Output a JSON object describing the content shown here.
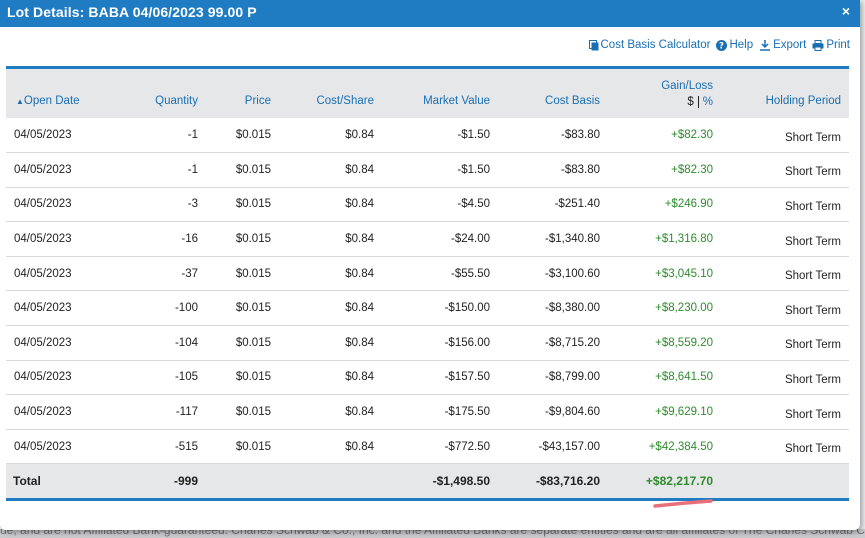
{
  "dialog": {
    "title": "Lot Details: BABA 04/06/2023 99.00 P",
    "close_glyph": "×"
  },
  "toolbar": {
    "cost_basis_calculator": "Cost Basis Calculator",
    "help": "Help",
    "export": "Export",
    "print": "Print"
  },
  "table": {
    "headers": {
      "open_date": "Open Date",
      "quantity": "Quantity",
      "price": "Price",
      "cost_share": "Cost/Share",
      "market_value": "Market Value",
      "cost_basis": "Cost Basis",
      "gain_loss": "Gain/Loss",
      "gain_dollar": "$",
      "gain_pct": "%",
      "holding_period": "Holding Period"
    },
    "sort": {
      "column": "Open Date",
      "direction": "ascending"
    },
    "rows": [
      {
        "open_date": "04/05/2023",
        "quantity": "-1",
        "price": "$0.015",
        "cost_share": "$0.84",
        "market_value": "-$1.50",
        "cost_basis": "-$83.80",
        "gain_loss": "+$82.30",
        "holding_period": "Short Term"
      },
      {
        "open_date": "04/05/2023",
        "quantity": "-1",
        "price": "$0.015",
        "cost_share": "$0.84",
        "market_value": "-$1.50",
        "cost_basis": "-$83.80",
        "gain_loss": "+$82.30",
        "holding_period": "Short Term"
      },
      {
        "open_date": "04/05/2023",
        "quantity": "-3",
        "price": "$0.015",
        "cost_share": "$0.84",
        "market_value": "-$4.50",
        "cost_basis": "-$251.40",
        "gain_loss": "+$246.90",
        "holding_period": "Short Term"
      },
      {
        "open_date": "04/05/2023",
        "quantity": "-16",
        "price": "$0.015",
        "cost_share": "$0.84",
        "market_value": "-$24.00",
        "cost_basis": "-$1,340.80",
        "gain_loss": "+$1,316.80",
        "holding_period": "Short Term"
      },
      {
        "open_date": "04/05/2023",
        "quantity": "-37",
        "price": "$0.015",
        "cost_share": "$0.84",
        "market_value": "-$55.50",
        "cost_basis": "-$3,100.60",
        "gain_loss": "+$3,045.10",
        "holding_period": "Short Term"
      },
      {
        "open_date": "04/05/2023",
        "quantity": "-100",
        "price": "$0.015",
        "cost_share": "$0.84",
        "market_value": "-$150.00",
        "cost_basis": "-$8,380.00",
        "gain_loss": "+$8,230.00",
        "holding_period": "Short Term"
      },
      {
        "open_date": "04/05/2023",
        "quantity": "-104",
        "price": "$0.015",
        "cost_share": "$0.84",
        "market_value": "-$156.00",
        "cost_basis": "-$8,715.20",
        "gain_loss": "+$8,559.20",
        "holding_period": "Short Term"
      },
      {
        "open_date": "04/05/2023",
        "quantity": "-105",
        "price": "$0.015",
        "cost_share": "$0.84",
        "market_value": "-$157.50",
        "cost_basis": "-$8,799.00",
        "gain_loss": "+$8,641.50",
        "holding_period": "Short Term"
      },
      {
        "open_date": "04/05/2023",
        "quantity": "-117",
        "price": "$0.015",
        "cost_share": "$0.84",
        "market_value": "-$175.50",
        "cost_basis": "-$9,804.60",
        "gain_loss": "+$9,629.10",
        "holding_period": "Short Term"
      },
      {
        "open_date": "04/05/2023",
        "quantity": "-515",
        "price": "$0.015",
        "cost_share": "$0.84",
        "market_value": "-$772.50",
        "cost_basis": "-$43,157.00",
        "gain_loss": "+$42,384.50",
        "holding_period": "Short Term"
      }
    ],
    "total": {
      "label": "Total",
      "quantity": "-999",
      "market_value": "-$1,498.50",
      "cost_basis": "-$83,716.20",
      "gain_loss": "+$82,217.70"
    }
  },
  "background": {
    "disclaimer": "ue, and are not Affiliated Bank-guaranteed. Charles Schwab & Co., Inc. and the Affiliated Banks are separate entities and are all affiliates of The Charles Schwab Corporation"
  },
  "icons": {
    "calculator": "calculator-icon",
    "help": "help-icon",
    "export": "download-icon",
    "print": "print-icon",
    "sort": "sort-asc-icon",
    "close": "close-icon"
  },
  "colors": {
    "accent": "#1f7cc3",
    "link": "#1a6fb3",
    "gain": "#2e8b2e",
    "annotation": "#e8707a"
  }
}
